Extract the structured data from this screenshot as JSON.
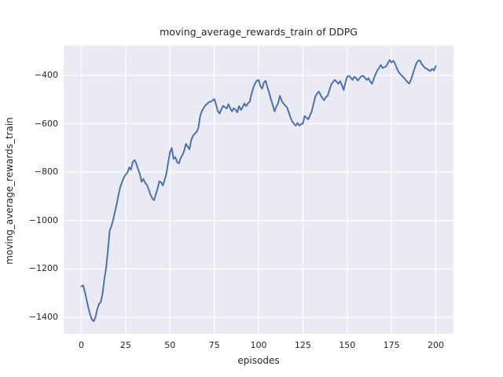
{
  "chart_data": {
    "type": "line",
    "title": "moving_average_rewards_train of DDPG",
    "xlabel": "episodes",
    "ylabel": "moving_average_rewards_train",
    "xlim": [
      -10,
      210
    ],
    "ylim": [
      -1468,
      -277
    ],
    "grid": true,
    "legend": "none",
    "line_color": "#4c72b0",
    "plot_bg_color": "#eaeaf2",
    "grid_color": "#ffffff",
    "text_color": "#262626",
    "xticks": [
      {
        "v": 0,
        "label": "0"
      },
      {
        "v": 25,
        "label": "25"
      },
      {
        "v": 50,
        "label": "50"
      },
      {
        "v": 75,
        "label": "75"
      },
      {
        "v": 100,
        "label": "100"
      },
      {
        "v": 125,
        "label": "125"
      },
      {
        "v": 150,
        "label": "150"
      },
      {
        "v": 175,
        "label": "175"
      },
      {
        "v": 200,
        "label": "200"
      }
    ],
    "yticks": [
      {
        "v": -400,
        "label": "−400"
      },
      {
        "v": -600,
        "label": "−600"
      },
      {
        "v": -800,
        "label": "−800"
      },
      {
        "v": -1000,
        "label": "−1000"
      },
      {
        "v": -1200,
        "label": "−1200"
      },
      {
        "v": -1400,
        "label": "−1400"
      }
    ],
    "series": [
      {
        "name": "moving_average_rewards_train",
        "x_start": 0,
        "x_step": 1,
        "values": [
          -1272,
          -1268,
          -1295,
          -1330,
          -1362,
          -1390,
          -1410,
          -1416,
          -1398,
          -1365,
          -1344,
          -1336,
          -1300,
          -1240,
          -1195,
          -1120,
          -1040,
          -1022,
          -995,
          -962,
          -930,
          -892,
          -860,
          -840,
          -822,
          -810,
          -802,
          -780,
          -790,
          -758,
          -750,
          -765,
          -788,
          -808,
          -840,
          -828,
          -845,
          -852,
          -872,
          -893,
          -908,
          -916,
          -892,
          -868,
          -838,
          -842,
          -855,
          -832,
          -805,
          -760,
          -718,
          -700,
          -745,
          -738,
          -758,
          -764,
          -742,
          -730,
          -712,
          -683,
          -695,
          -706,
          -667,
          -650,
          -641,
          -634,
          -618,
          -570,
          -548,
          -535,
          -524,
          -518,
          -510,
          -509,
          -504,
          -498,
          -520,
          -548,
          -558,
          -540,
          -526,
          -532,
          -537,
          -519,
          -536,
          -549,
          -536,
          -542,
          -553,
          -527,
          -543,
          -532,
          -516,
          -527,
          -516,
          -509,
          -478,
          -452,
          -434,
          -422,
          -419,
          -444,
          -455,
          -430,
          -422,
          -450,
          -472,
          -500,
          -522,
          -549,
          -530,
          -516,
          -484,
          -504,
          -516,
          -525,
          -532,
          -552,
          -574,
          -591,
          -600,
          -608,
          -597,
          -608,
          -601,
          -600,
          -568,
          -575,
          -582,
          -566,
          -549,
          -519,
          -488,
          -476,
          -467,
          -481,
          -494,
          -503,
          -490,
          -484,
          -461,
          -438,
          -428,
          -419,
          -426,
          -435,
          -424,
          -440,
          -461,
          -430,
          -406,
          -402,
          -409,
          -419,
          -406,
          -411,
          -422,
          -412,
          -404,
          -402,
          -410,
          -419,
          -412,
          -426,
          -435,
          -414,
          -396,
          -380,
          -370,
          -357,
          -370,
          -366,
          -363,
          -349,
          -337,
          -347,
          -340,
          -352,
          -370,
          -386,
          -395,
          -402,
          -410,
          -419,
          -428,
          -434,
          -419,
          -396,
          -372,
          -352,
          -340,
          -338,
          -352,
          -362,
          -370,
          -373,
          -379,
          -382,
          -373,
          -380,
          -362
        ]
      }
    ]
  }
}
